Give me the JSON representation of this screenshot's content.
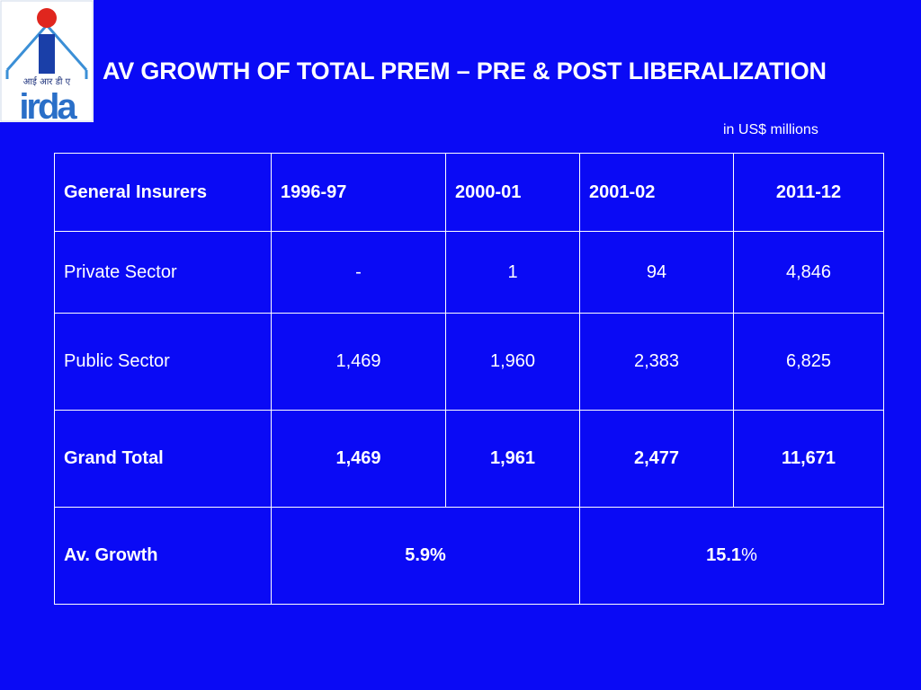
{
  "logo": {
    "hindi_text": "आई आर डी ए",
    "latin_text": "irda"
  },
  "title": "AV GROWTH OF TOTAL PREM – PRE & POST LIBERALIZATION",
  "units_note": "in US$ millions",
  "table": {
    "headers": [
      "General Insurers",
      "1996-97",
      "2000-01",
      "2001-02",
      "2011-12"
    ],
    "rows": [
      {
        "label": "Private Sector",
        "values": [
          "-",
          "1",
          "94",
          "4,846"
        ]
      },
      {
        "label": "Public Sector",
        "values": [
          "1,469",
          "1,960",
          "2,383",
          "6,825"
        ]
      },
      {
        "label": "Grand Total",
        "values": [
          "1,469",
          "1,961",
          "2,477",
          "11,671"
        ]
      }
    ],
    "growth": {
      "label": "Av. Growth",
      "pre": "5.9%",
      "post_value": "15.1",
      "post_symbol": "%"
    }
  }
}
